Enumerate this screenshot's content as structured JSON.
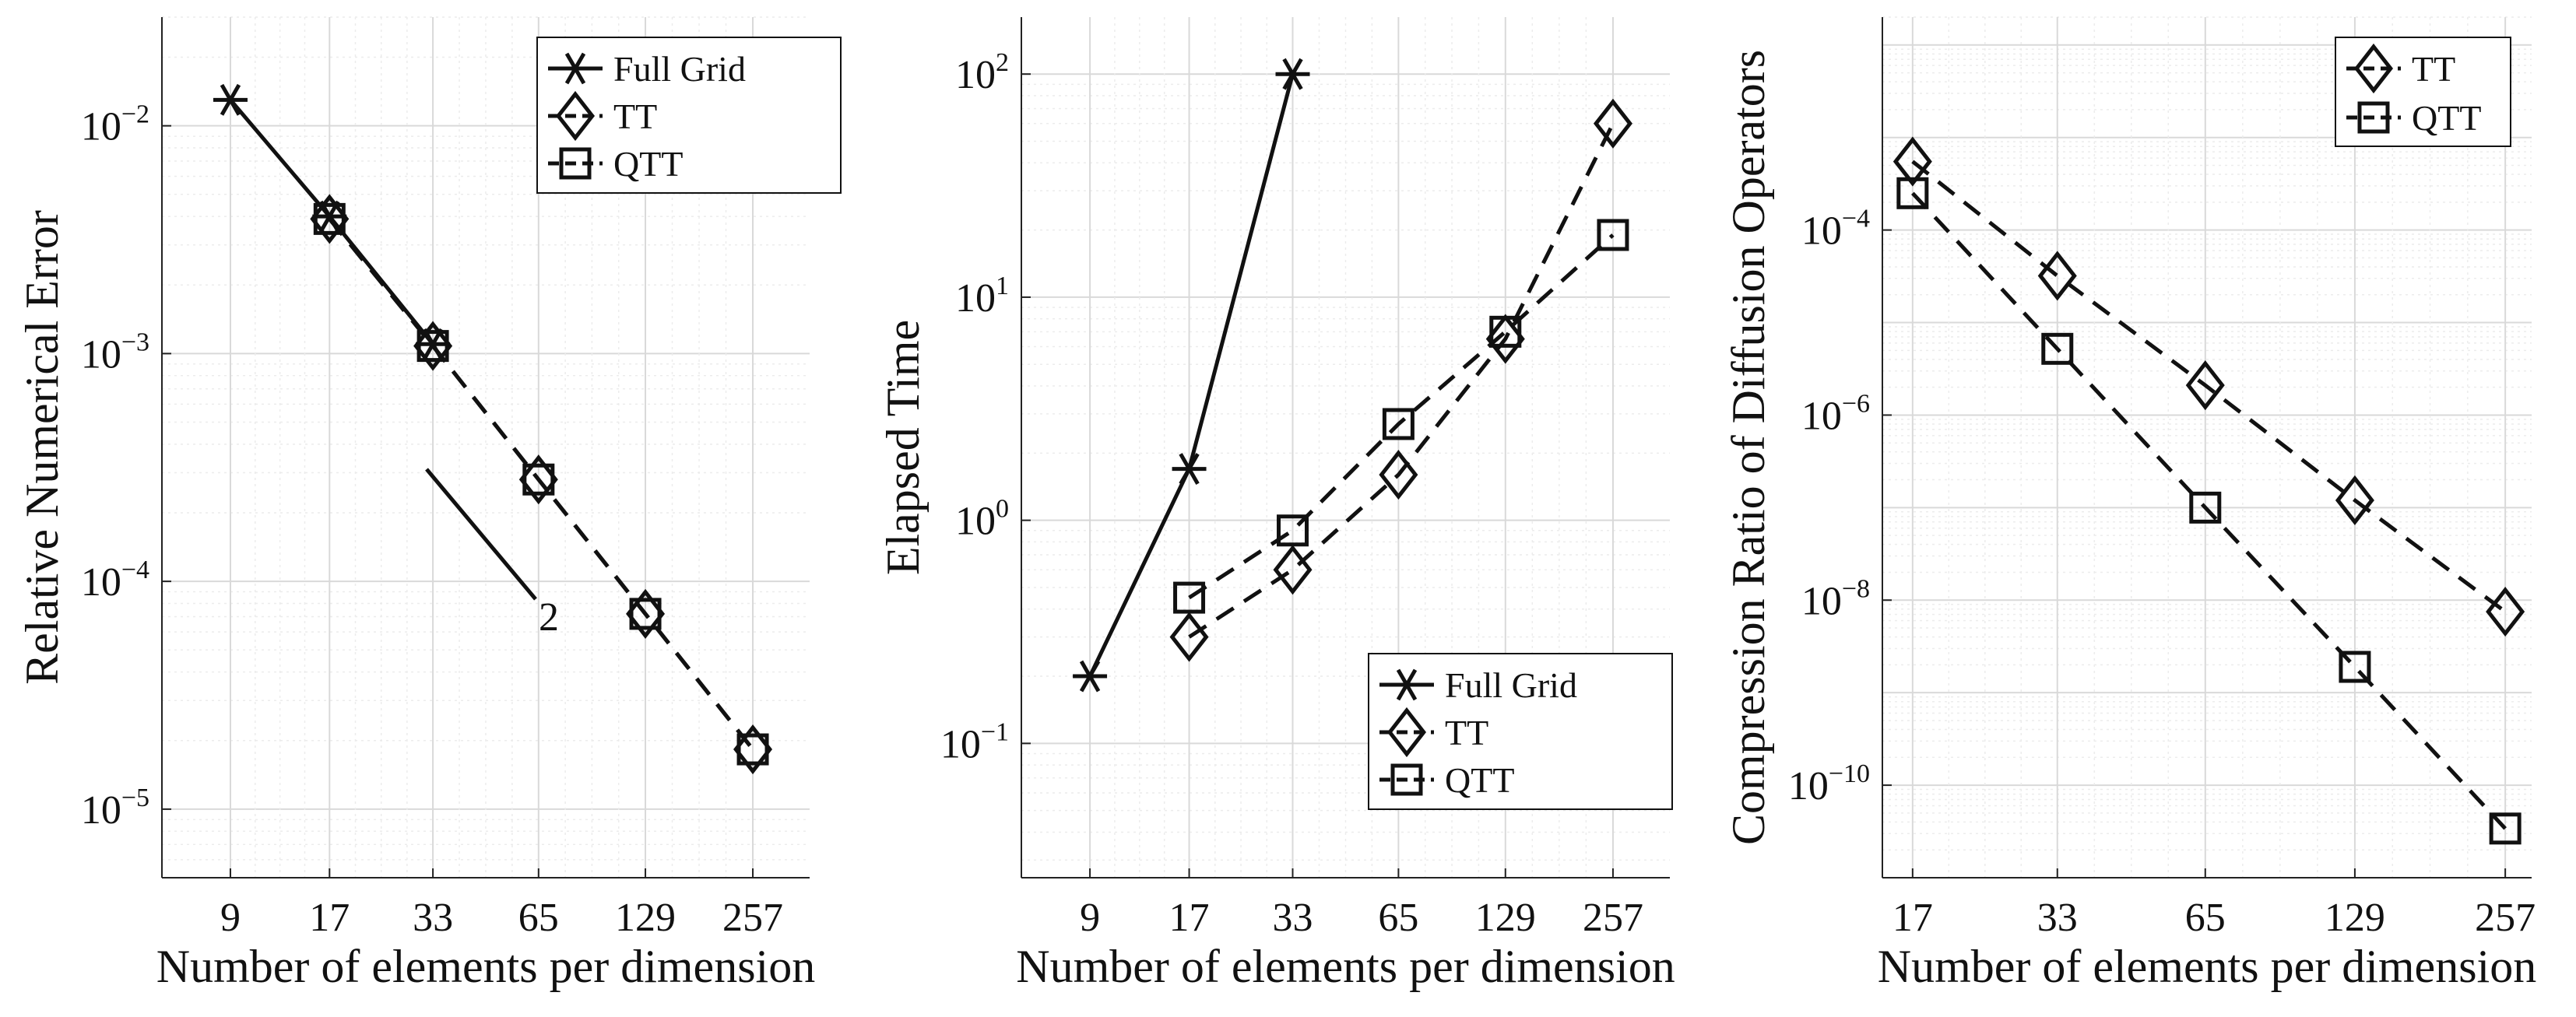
{
  "colors": {
    "line": "#111111",
    "grid_major": "#d9d9d9",
    "grid_minor": "#ececec",
    "axis": "#222222",
    "background": "#ffffff"
  },
  "chart_data": [
    {
      "type": "line",
      "xscale": "log2",
      "yscale": "log10",
      "xlabel": "Number of elements per dimension",
      "ylabel": "Relative Numerical Error",
      "xticks": [
        9,
        17,
        33,
        65,
        129,
        257
      ],
      "xtick_labels": [
        "9",
        "17",
        "33",
        "65",
        "129",
        "257"
      ],
      "ytick_exponents": [
        -5,
        -4,
        -3,
        -2
      ],
      "ylim": [
        5e-06,
        0.03
      ],
      "legend_position": "top-right",
      "series": [
        {
          "name": "Full Grid",
          "marker": "asterisk",
          "dash": "solid",
          "x": [
            9,
            17,
            33
          ],
          "y": [
            0.013,
            0.004,
            0.0011
          ]
        },
        {
          "name": "TT",
          "marker": "diamond",
          "dash": "dashed",
          "x": [
            17,
            33,
            65,
            129,
            257
          ],
          "y": [
            0.0039,
            0.00108,
            0.00028,
            7.2e-05,
            1.83e-05
          ]
        },
        {
          "name": "QTT",
          "marker": "square",
          "dash": "dashed",
          "x": [
            17,
            33,
            65,
            129,
            257
          ],
          "y": [
            0.0039,
            0.00108,
            0.00028,
            7.2e-05,
            1.83e-05
          ]
        }
      ],
      "annotation": {
        "text": "2",
        "description": "reference slope line"
      }
    },
    {
      "type": "line",
      "xscale": "log2",
      "yscale": "log10",
      "xlabel": "Number of elements per dimension",
      "ylabel": "Elapsed Time",
      "xticks": [
        9,
        17,
        33,
        65,
        129,
        257
      ],
      "xtick_labels": [
        "9",
        "17",
        "33",
        "65",
        "129",
        "257"
      ],
      "ytick_exponents": [
        -1,
        0,
        1,
        2
      ],
      "ylim": [
        0.025,
        180
      ],
      "legend_position": "bottom-right",
      "series": [
        {
          "name": "Full Grid",
          "marker": "asterisk",
          "dash": "solid",
          "x": [
            9,
            17,
            33
          ],
          "y": [
            0.2,
            1.7,
            100
          ]
        },
        {
          "name": "TT",
          "marker": "diamond",
          "dash": "dashed",
          "x": [
            17,
            33,
            65,
            129,
            257
          ],
          "y": [
            0.3,
            0.6,
            1.6,
            6.5,
            60
          ]
        },
        {
          "name": "QTT",
          "marker": "square",
          "dash": "dashed",
          "x": [
            17,
            33,
            65,
            129,
            257
          ],
          "y": [
            0.45,
            0.9,
            2.7,
            7.0,
            19
          ]
        }
      ]
    },
    {
      "type": "line",
      "xscale": "log2",
      "yscale": "log10",
      "xlabel": "Number of elements per dimension",
      "ylabel": "Compression Ratio of Diffusion Operators",
      "xticks": [
        17,
        33,
        65,
        129,
        257
      ],
      "xtick_labels": [
        "17",
        "33",
        "65",
        "129",
        "257"
      ],
      "ytick_exponents": [
        -10,
        -8,
        -6,
        -4
      ],
      "ylim": [
        1e-11,
        0.02
      ],
      "legend_position": "top-right",
      "series": [
        {
          "name": "TT",
          "marker": "diamond",
          "dash": "dashed",
          "x": [
            17,
            33,
            65,
            129,
            257
          ],
          "y": [
            0.00055,
            3.2e-05,
            2.1e-06,
            1.2e-07,
            7.5e-09
          ]
        },
        {
          "name": "QTT",
          "marker": "square",
          "dash": "dashed",
          "x": [
            17,
            33,
            65,
            129,
            257
          ],
          "y": [
            0.00025,
            5.2e-06,
            1e-07,
            1.9e-09,
            3.4e-11
          ]
        }
      ]
    }
  ]
}
